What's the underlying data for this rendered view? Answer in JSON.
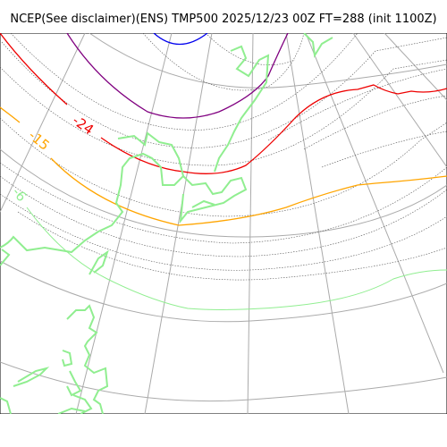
{
  "title": "NCEP(See disclaimer)(ENS) TMP500 2025/12/23 00Z FT=288 (init 1100Z)",
  "contour_labels": {
    "red": "-24",
    "orange": "-15",
    "green": "-6"
  },
  "colors": {
    "grid": "#aaaaaa",
    "coast": "#90ee90",
    "contour_thin": "#555555",
    "red": "#ee0000",
    "orange": "#ffa500",
    "purple": "#800080",
    "blue": "#0000ee",
    "green_label": "#90ee90"
  }
}
